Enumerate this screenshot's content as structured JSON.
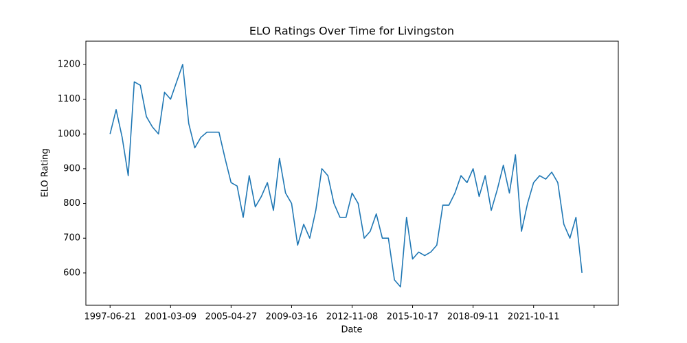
{
  "chart_data": {
    "type": "line",
    "title": "ELO Ratings Over Time for Livingston",
    "x_label": "Date",
    "y_label": "ELO Rating",
    "categories": [
      "1997-06-21",
      null,
      null,
      null,
      null,
      null,
      null,
      null,
      null,
      null,
      "2001-03-09",
      null,
      null,
      null,
      null,
      null,
      null,
      null,
      null,
      null,
      "2005-04-27",
      null,
      null,
      null,
      null,
      null,
      null,
      null,
      null,
      null,
      "2009-03-16",
      null,
      null,
      null,
      null,
      null,
      null,
      null,
      null,
      null,
      "2012-11-08",
      null,
      null,
      null,
      null,
      null,
      null,
      null,
      null,
      null,
      "2015-10-17",
      null,
      null,
      null,
      null,
      null,
      null,
      null,
      null,
      null,
      "2018-09-11",
      null,
      null,
      null,
      null,
      null,
      null,
      null,
      null,
      null,
      "2021-10-11",
      null,
      null,
      null,
      null,
      null,
      null,
      null,
      null,
      null,
      null
    ],
    "values": [
      1000,
      1070,
      990,
      880,
      1150,
      1140,
      1050,
      1020,
      1000,
      1120,
      1100,
      1150,
      1200,
      1030,
      960,
      990,
      1005,
      1005,
      1005,
      930,
      860,
      850,
      760,
      880,
      790,
      820,
      860,
      780,
      930,
      830,
      800,
      680,
      740,
      700,
      780,
      900,
      880,
      800,
      760,
      760,
      830,
      800,
      700,
      720,
      770,
      700,
      700,
      580,
      560,
      760,
      640,
      660,
      650,
      660,
      680,
      795,
      795,
      830,
      880,
      860,
      900,
      820,
      880,
      780,
      840,
      910,
      830,
      940,
      720,
      800,
      860,
      880,
      870,
      890,
      860,
      740,
      700,
      760,
      600,
      null,
      null
    ],
    "color": "#1f77b4",
    "ylim": [
      507,
      1267
    ],
    "yticks": [
      600,
      700,
      800,
      900,
      1000,
      1100,
      1200
    ]
  }
}
